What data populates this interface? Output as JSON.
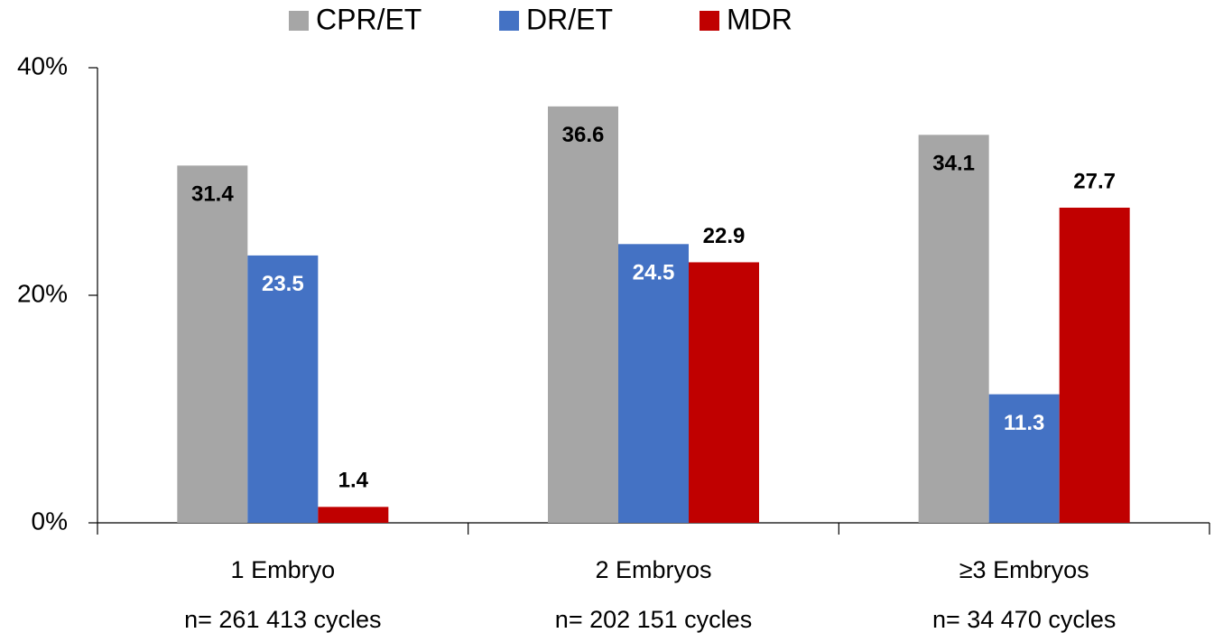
{
  "chart_data": {
    "type": "bar",
    "categories": [
      "1 Embryo",
      "2 Embryos",
      "≥3 Embryos"
    ],
    "category_sublabels": [
      "n= 261 413 cycles",
      "n= 202 151 cycles",
      "n= 34 470 cycles"
    ],
    "series": [
      {
        "name": "CPR/ET",
        "color": "#a6a6a6",
        "label_color": "#000000",
        "values": [
          31.4,
          36.6,
          34.1
        ]
      },
      {
        "name": "DR/ET",
        "color": "#4472c4",
        "label_color": "#ffffff",
        "values": [
          23.5,
          24.5,
          11.3
        ]
      },
      {
        "name": "MDR",
        "color": "#c00000",
        "label_color": "#000000",
        "values": [
          1.4,
          22.9,
          27.7
        ]
      }
    ],
    "ylim": [
      0,
      40
    ],
    "yticks": [
      {
        "value": 0,
        "label": "0%"
      },
      {
        "value": 20,
        "label": "20%"
      },
      {
        "value": 40,
        "label": "40%"
      }
    ],
    "grid": false
  }
}
